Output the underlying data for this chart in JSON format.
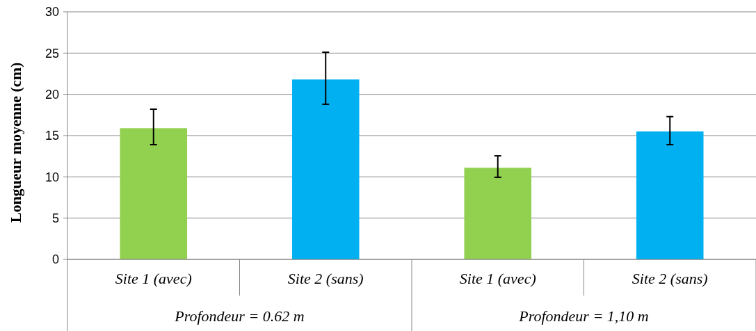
{
  "chart_data": {
    "type": "bar",
    "ylabel": "Longueur moyenne (cm)",
    "categories": [
      "Site 1 (avec)",
      "Site 2 (sans)",
      "Site 1 (avec)",
      "Site 2 (sans)"
    ],
    "values": [
      15.9,
      21.8,
      11.1,
      15.5
    ],
    "colors": [
      "#92d050",
      "#00b0f0",
      "#92d050",
      "#00b0f0"
    ],
    "errors": [
      [
        13.9,
        18.2
      ],
      [
        18.8,
        25.1
      ],
      [
        9.95,
        12.55
      ],
      [
        13.9,
        17.3
      ]
    ],
    "annotations": [
      "Profondeur = 0.62 m",
      "Profondeur = 1,10 m"
    ],
    "ylim": [
      0,
      30
    ],
    "yticks": [
      0,
      5,
      10,
      15,
      20,
      25,
      30
    ],
    "grid": "y"
  }
}
